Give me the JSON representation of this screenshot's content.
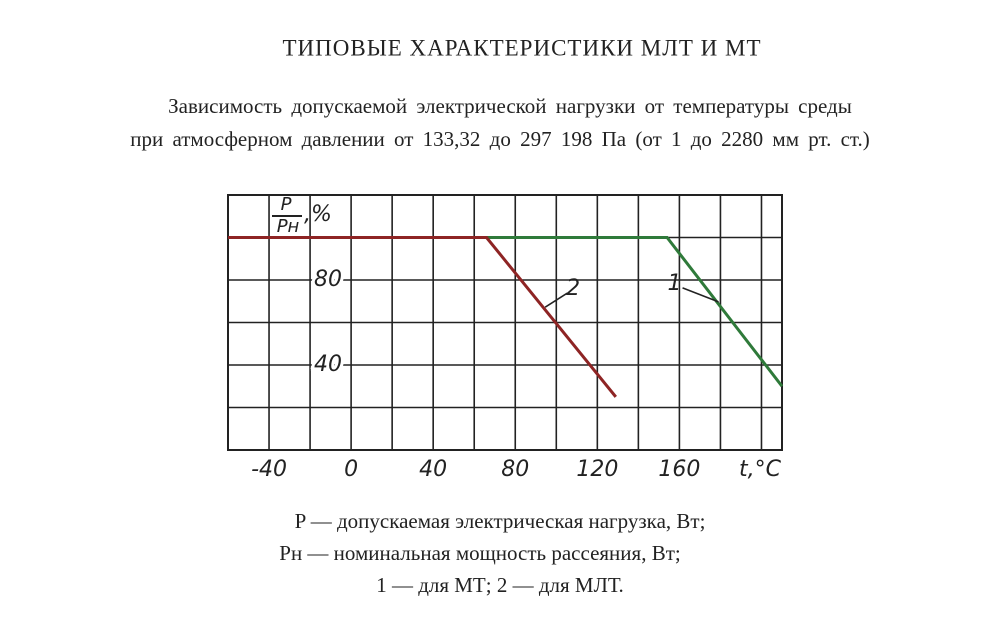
{
  "header": {
    "title": "ТИПОВЫЕ ХАРАКТЕРИСТИКИ МЛТ И МТ",
    "subtitle": [
      "Зависимость допускаемой электрической нагрузки от температуры среды",
      "при атмосферном давлении от 133,32 до 297 198 Па (от 1 до 2280 мм рт. ст.)"
    ]
  },
  "chart_data": {
    "type": "line",
    "ylabel_num": "P",
    "ylabel_den": "Pн",
    "ylabel_unit": ",%",
    "xlabel": "t,°C",
    "xlim": [
      -60,
      210
    ],
    "xticks": [
      -40,
      0,
      40,
      80,
      120,
      160
    ],
    "xminor": [
      -60,
      -20,
      20,
      60,
      100,
      140,
      180,
      200
    ],
    "ylim": [
      0,
      120
    ],
    "yticks": [
      40,
      80
    ],
    "yminor": [
      20,
      60,
      100
    ],
    "grid": true,
    "series": [
      {
        "name": "1",
        "color": "#2f7a3a",
        "x": [
          -60,
          154,
          210
        ],
        "values": [
          100,
          100,
          30
        ]
      },
      {
        "name": "2",
        "color": "#8e2424",
        "x": [
          -60,
          66,
          129
        ],
        "values": [
          100,
          100,
          25
        ]
      }
    ]
  },
  "notes": [
    "P — допускаемая электрическая нагрузка, Вт;",
    "Pн — номинальная мощность рассеяния, Вт;",
    "1 — для МТ; 2 — для МЛТ."
  ]
}
